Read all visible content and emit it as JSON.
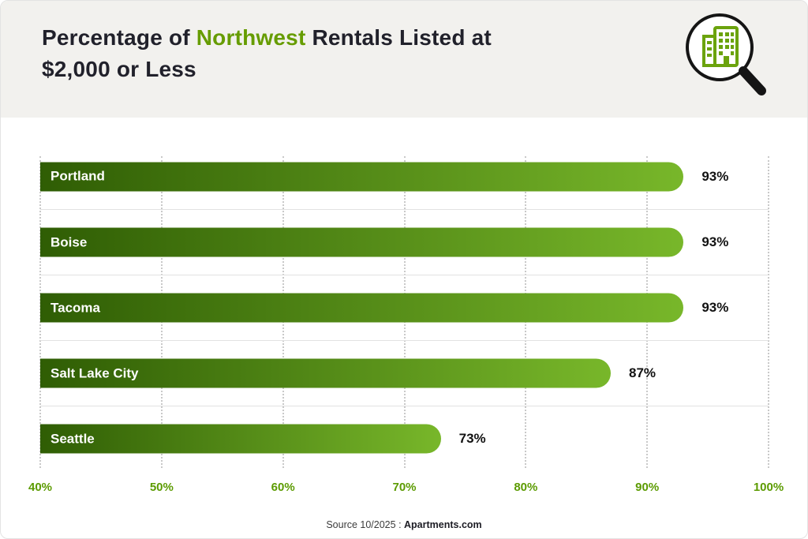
{
  "header": {
    "title_line1_prefix": "Percentage of ",
    "title_highlight": "Northwest",
    "title_line1_suffix": " Rentals Listed at",
    "title_line2": "$2,000 or Less",
    "icon": "building-magnifier-icon"
  },
  "chart_data": {
    "type": "bar",
    "orientation": "horizontal",
    "title": "Percentage of Northwest Rentals Listed at $2,000 or Less",
    "categories": [
      "Portland",
      "Boise",
      "Tacoma",
      "Salt Lake City",
      "Seattle"
    ],
    "values": [
      93,
      93,
      93,
      87,
      73
    ],
    "value_labels": [
      "93%",
      "93%",
      "93%",
      "87%",
      "73%"
    ],
    "xlabel": "",
    "ylabel": "",
    "xlim": [
      40,
      100
    ],
    "x_ticks": [
      40,
      50,
      60,
      70,
      80,
      90,
      100
    ],
    "x_tick_labels": [
      "40%",
      "50%",
      "60%",
      "70%",
      "80%",
      "90%",
      "100%"
    ],
    "grid": "vertical dotted gridlines at each x tick, light horizontal separators between rows",
    "legend": "none",
    "colors": {
      "bar_gradient_start": "#2f5d04",
      "bar_gradient_end": "#78b72a",
      "axis_tick_label": "#5c9b02",
      "title_highlight": "#669c00",
      "bar_label_text": "#ffffff",
      "value_label_text": "#121212",
      "header_background": "#f2f1ee",
      "card_background": "#ffffff"
    }
  },
  "footer": {
    "source_prefix": "Source 10/2025 : ",
    "source_brand": "Apartments.com"
  }
}
